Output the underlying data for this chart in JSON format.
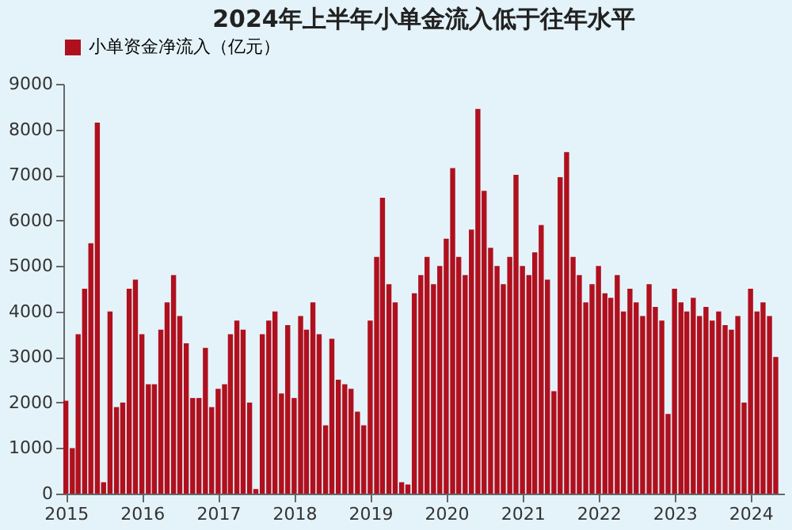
{
  "chart_data": {
    "type": "bar",
    "title": "2024年上半年小单金流入低于往年水平",
    "x": [
      "2015-01",
      "2015-02",
      "2015-03",
      "2015-04",
      "2015-05",
      "2015-06",
      "2015-07",
      "2015-08",
      "2015-09",
      "2015-10",
      "2015-11",
      "2015-12",
      "2016-01",
      "2016-02",
      "2016-03",
      "2016-04",
      "2016-05",
      "2016-06",
      "2016-07",
      "2016-08",
      "2016-09",
      "2016-10",
      "2016-11",
      "2016-12",
      "2017-01",
      "2017-02",
      "2017-03",
      "2017-04",
      "2017-05",
      "2017-06",
      "2017-07",
      "2017-08",
      "2017-09",
      "2017-10",
      "2017-11",
      "2017-12",
      "2018-01",
      "2018-02",
      "2018-03",
      "2018-04",
      "2018-05",
      "2018-06",
      "2018-07",
      "2018-08",
      "2018-09",
      "2018-10",
      "2018-11",
      "2018-12",
      "2019-01",
      "2019-02",
      "2019-03",
      "2019-04",
      "2019-05",
      "2019-06",
      "2019-07",
      "2019-08",
      "2019-09",
      "2019-10",
      "2019-11",
      "2019-12",
      "2020-01",
      "2020-02",
      "2020-03",
      "2020-04",
      "2020-05",
      "2020-06",
      "2020-07",
      "2020-08",
      "2020-09",
      "2020-10",
      "2020-11",
      "2020-12",
      "2021-01",
      "2021-02",
      "2021-03",
      "2021-04",
      "2021-05",
      "2021-06",
      "2021-07",
      "2021-08",
      "2021-09",
      "2021-10",
      "2021-11",
      "2021-12",
      "2022-01",
      "2022-02",
      "2022-03",
      "2022-04",
      "2022-05",
      "2022-06",
      "2022-07",
      "2022-08",
      "2022-09",
      "2022-10",
      "2022-11",
      "2022-12",
      "2023-01",
      "2023-02",
      "2023-03",
      "2023-04",
      "2023-05",
      "2023-06",
      "2023-07",
      "2023-08",
      "2023-09",
      "2023-10",
      "2023-11",
      "2023-12",
      "2024-01",
      "2024-02",
      "2024-03",
      "2024-04",
      "2024-05"
    ],
    "series": [
      {
        "name": "小单资金净流入（亿元）",
        "color": "#b0101e",
        "values": [
          2040,
          1000,
          3500,
          4500,
          5500,
          8150,
          250,
          4000,
          1900,
          2000,
          4500,
          4700,
          3500,
          2400,
          2400,
          3600,
          4200,
          4800,
          3900,
          3300,
          2100,
          2100,
          3200,
          1900,
          2300,
          2400,
          3500,
          3800,
          3600,
          2000,
          100,
          3500,
          3800,
          4000,
          2200,
          3700,
          2100,
          3900,
          3600,
          4200,
          3500,
          1500,
          3400,
          2500,
          2400,
          2300,
          1800,
          1500,
          3800,
          5200,
          6500,
          4600,
          4200,
          250,
          200,
          4400,
          4800,
          5200,
          4600,
          5000,
          5600,
          7150,
          5200,
          4800,
          5800,
          8450,
          6650,
          5400,
          5000,
          4600,
          5200,
          7000,
          5000,
          4800,
          5300,
          5900,
          4700,
          2250,
          6950,
          7500,
          5200,
          4800,
          4200,
          4600,
          5000,
          4400,
          4300,
          4800,
          4000,
          4500,
          4200,
          3900,
          4600,
          4100,
          3800,
          1750,
          4500,
          4200,
          4000,
          4300,
          3900,
          4100,
          3800,
          4000,
          3700,
          3600,
          3900,
          2000,
          4500,
          4000,
          4200,
          3900,
          3000
        ]
      }
    ],
    "xlim": [
      "2014-12-20",
      "2024-06-10"
    ],
    "xticks": [
      {
        "value": "2015-01-01",
        "label": "2015"
      },
      {
        "value": "2016-01-01",
        "label": "2016"
      },
      {
        "value": "2017-01-01",
        "label": "2017"
      },
      {
        "value": "2018-01-01",
        "label": "2018"
      },
      {
        "value": "2019-01-01",
        "label": "2019"
      },
      {
        "value": "2020-01-01",
        "label": "2020"
      },
      {
        "value": "2021-01-01",
        "label": "2021"
      },
      {
        "value": "2022-01-01",
        "label": "2022"
      },
      {
        "value": "2023-01-01",
        "label": "2023"
      },
      {
        "value": "2024-01-01",
        "label": "2024"
      }
    ],
    "ylim": [
      0,
      9000
    ],
    "yticks": [
      0,
      1000,
      2000,
      3000,
      4000,
      5000,
      6000,
      7000,
      8000,
      9000
    ],
    "grid": false,
    "legend": "top"
  }
}
